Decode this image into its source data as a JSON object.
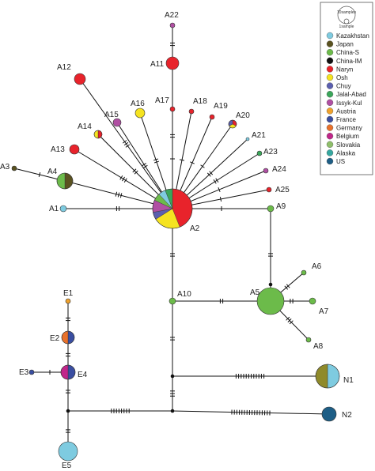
{
  "legend": {
    "scale_big": "10samples",
    "scale_small": "1sample",
    "items": [
      {
        "label": "Kazakhstan",
        "color": "#7ecbe0"
      },
      {
        "label": "Japan",
        "color": "#5a5220"
      },
      {
        "label": "China-S",
        "color": "#6cbb4a"
      },
      {
        "label": "China-IM",
        "color": "#111111"
      },
      {
        "label": "Naryn",
        "color": "#e8232b"
      },
      {
        "label": "Osh",
        "color": "#f5e320"
      },
      {
        "label": "Chuy",
        "color": "#5b5fb0"
      },
      {
        "label": "Jalal-Abad",
        "color": "#3aa65a"
      },
      {
        "label": "Issyk-Kul",
        "color": "#b04fa3"
      },
      {
        "label": "Austria",
        "color": "#f0a22c"
      },
      {
        "label": "France",
        "color": "#3a4ea1"
      },
      {
        "label": "Germany",
        "color": "#e8712b"
      },
      {
        "label": "Belgium",
        "color": "#c1268a"
      },
      {
        "label": "Slovakia",
        "color": "#8fbf6a"
      },
      {
        "label": "Alaska",
        "color": "#35a8a0"
      },
      {
        "label": "US",
        "color": "#1d5e86"
      }
    ]
  },
  "haplotypes": [
    {
      "label": "A1",
      "colors": [
        "#7ecbe0"
      ]
    },
    {
      "label": "A2",
      "colors": [
        "#e8232b",
        "#f5e320",
        "#5b5fb0",
        "#b04fa3",
        "#6cbb4a",
        "#7ecbe0",
        "#3aa65a"
      ]
    },
    {
      "label": "A3",
      "colors": [
        "#5a5220"
      ]
    },
    {
      "label": "A4",
      "colors": [
        "#5a5220",
        "#6cbb4a"
      ]
    },
    {
      "label": "A5",
      "colors": [
        "#6cbb4a"
      ]
    },
    {
      "label": "A6",
      "colors": [
        "#6cbb4a"
      ]
    },
    {
      "label": "A7",
      "colors": [
        "#6cbb4a"
      ]
    },
    {
      "label": "A8",
      "colors": [
        "#6cbb4a"
      ]
    },
    {
      "label": "A9",
      "colors": [
        "#6cbb4a"
      ]
    },
    {
      "label": "A10",
      "colors": [
        "#6cbb4a"
      ]
    },
    {
      "label": "A11",
      "colors": [
        "#e8232b"
      ]
    },
    {
      "label": "A12",
      "colors": [
        "#e8232b"
      ]
    },
    {
      "label": "A13",
      "colors": [
        "#e8232b"
      ]
    },
    {
      "label": "A14",
      "colors": [
        "#e8232b",
        "#f5e320"
      ]
    },
    {
      "label": "A15",
      "colors": [
        "#b04fa3"
      ]
    },
    {
      "label": "A16",
      "colors": [
        "#f5e320"
      ]
    },
    {
      "label": "A17",
      "colors": [
        "#e8232b"
      ]
    },
    {
      "label": "A18",
      "colors": [
        "#e8232b"
      ]
    },
    {
      "label": "A19",
      "colors": [
        "#e8232b"
      ]
    },
    {
      "label": "A20",
      "colors": [
        "#e8232b",
        "#f5e320",
        "#5b5fb0"
      ]
    },
    {
      "label": "A21",
      "colors": [
        "#7ecbe0"
      ]
    },
    {
      "label": "A22",
      "colors": [
        "#b04fa3"
      ]
    },
    {
      "label": "A23",
      "colors": [
        "#3aa65a"
      ]
    },
    {
      "label": "A24",
      "colors": [
        "#b04fa3"
      ]
    },
    {
      "label": "A25",
      "colors": [
        "#e8232b"
      ]
    },
    {
      "label": "E1",
      "colors": [
        "#f0a22c"
      ]
    },
    {
      "label": "E2",
      "colors": [
        "#3a4ea1",
        "#e8712b"
      ]
    },
    {
      "label": "E3",
      "colors": [
        "#3a4ea1"
      ]
    },
    {
      "label": "E4",
      "colors": [
        "#3a4ea1",
        "#c1268a"
      ]
    },
    {
      "label": "E5",
      "colors": [
        "#7ecbe0"
      ]
    },
    {
      "label": "N1",
      "colors": [
        "#7ecbe0",
        "#8f8a2a"
      ]
    },
    {
      "label": "N2",
      "colors": [
        "#1d5e86"
      ]
    }
  ]
}
